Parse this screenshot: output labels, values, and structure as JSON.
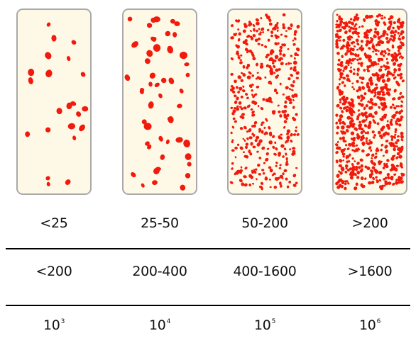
{
  "panels": [
    {
      "id": "panel-1",
      "density": 0.0008,
      "color": "#f2190d",
      "dot_size": "large"
    },
    {
      "id": "panel-2",
      "density": 0.0018,
      "color": "#f2190d",
      "dot_size": "large"
    },
    {
      "id": "panel-3",
      "density": 0.016,
      "color": "#f2190d",
      "dot_size": "small"
    },
    {
      "id": "panel-4",
      "density": 0.03,
      "color": "#f2190d",
      "dot_size": "small"
    }
  ],
  "rows": [
    {
      "cells": [
        "<25",
        "25-50",
        "50-200",
        ">200"
      ]
    },
    {
      "cells": [
        "<200",
        "200-400",
        "400-1600",
        ">1600"
      ]
    },
    {
      "cells": [
        {
          "base": "10",
          "exp": "3"
        },
        {
          "base": "10",
          "exp": "4"
        },
        {
          "base": "10",
          "exp": "5"
        },
        {
          "base": "10",
          "exp": "6"
        }
      ]
    }
  ]
}
